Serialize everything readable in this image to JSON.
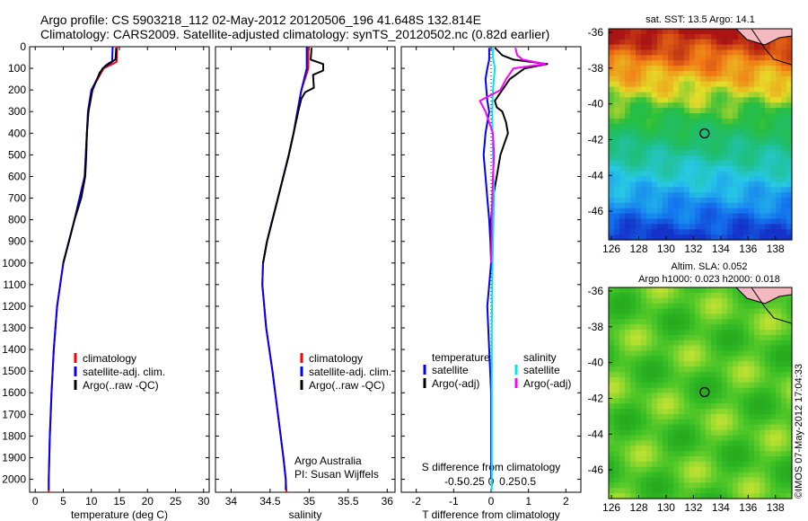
{
  "header": {
    "line1": "Argo profile: CS 5903218_112 02-May-2012 20120506_196 41.648S 132.814E",
    "line2": "Climatology: CARS2009. Satellite-adjusted climatology: synTS_20120502.nc (0.82d earlier)"
  },
  "depth_ticks": [
    0,
    100,
    200,
    300,
    400,
    500,
    600,
    700,
    800,
    900,
    1000,
    1100,
    1200,
    1300,
    1400,
    1500,
    1600,
    1700,
    1800,
    1900,
    2000
  ],
  "chart_data": [
    {
      "type": "line",
      "panel": "temperature",
      "xlabel": "temperature (deg C)",
      "xlim": [
        -1,
        31
      ],
      "x_ticks": [
        0,
        5,
        10,
        15,
        20,
        25,
        30
      ],
      "x_tick_labels": [
        "0",
        "5",
        "10",
        "15",
        "20",
        "25",
        "30"
      ],
      "ylim": [
        2060,
        0
      ],
      "legend": {
        "placement": "lower-center",
        "entries": [
          "climatology",
          "satellite-adj. clim.",
          "Argo(..raw -QC)"
        ]
      },
      "series": [
        {
          "name": "climatology",
          "color": "#ff0000",
          "depth": [
            0,
            70,
            100,
            200,
            300,
            400,
            600,
            800,
            1000,
            1200,
            1400,
            1600,
            1800,
            2000,
            2060
          ],
          "values": [
            14.6,
            14.5,
            12.2,
            10.0,
            9.4,
            9.2,
            8.8,
            7.0,
            5.0,
            3.9,
            3.3,
            2.9,
            2.6,
            2.4,
            2.4
          ]
        },
        {
          "name": "satellite-adj. clim.",
          "color": "#0000ff",
          "depth": [
            0,
            70,
            100,
            200,
            300,
            400,
            600,
            800,
            1000,
            1200,
            1400,
            1600,
            1800,
            2000,
            2050
          ],
          "values": [
            13.8,
            13.7,
            12.0,
            10.0,
            9.4,
            9.2,
            8.8,
            7.0,
            5.0,
            3.9,
            3.3,
            2.9,
            2.6,
            2.4,
            2.4
          ]
        },
        {
          "name": "Argo(..raw -QC)",
          "color": "#000000",
          "depth": [
            5,
            20,
            60,
            75,
            90,
            120,
            200,
            300,
            400,
            500,
            600,
            700,
            800,
            900,
            1000
          ],
          "values": [
            14.4,
            14.4,
            14.3,
            13.2,
            12.4,
            11.5,
            10.2,
            9.5,
            9.2,
            9.1,
            8.9,
            8.2,
            7.0,
            6.0,
            5.0
          ]
        }
      ]
    },
    {
      "type": "line",
      "panel": "salinity",
      "xlabel": "salinity",
      "xlim": [
        33.8,
        36.1
      ],
      "x_ticks": [
        34,
        34.5,
        35,
        35.5,
        36
      ],
      "x_tick_labels": [
        "34",
        "34.5",
        "35",
        "35.5",
        "36"
      ],
      "ylim": [
        2060,
        0
      ],
      "legend": {
        "placement": "lower-center",
        "entries": [
          "climatology",
          "satellite-adj. clim.",
          "Argo(..raw -QC)"
        ]
      },
      "series": [
        {
          "name": "climatology",
          "color": "#ff0000",
          "depth": [
            0,
            100,
            200,
            300,
            400,
            500,
            700,
            900,
            1000,
            1100,
            1300,
            1500,
            1700,
            1900,
            2000,
            2060
          ],
          "values": [
            34.99,
            34.99,
            34.9,
            34.85,
            34.8,
            34.74,
            34.6,
            34.46,
            34.41,
            34.4,
            34.45,
            34.53,
            34.6,
            34.67,
            34.7,
            34.71
          ]
        },
        {
          "name": "satellite-adj. clim.",
          "color": "#0000ff",
          "depth": [
            0,
            100,
            200,
            300,
            400,
            500,
            700,
            900,
            1000,
            1100,
            1300,
            1500,
            1700,
            1900,
            2000,
            2050
          ],
          "values": [
            34.97,
            34.97,
            34.9,
            34.85,
            34.8,
            34.74,
            34.6,
            34.46,
            34.41,
            34.4,
            34.45,
            34.53,
            34.6,
            34.67,
            34.7,
            34.7
          ]
        },
        {
          "name": "Argo(..raw -QC)",
          "color": "#000000",
          "depth": [
            5,
            60,
            80,
            110,
            130,
            190,
            210,
            240,
            300,
            400,
            500,
            600,
            700,
            800,
            900,
            1000
          ],
          "values": [
            35.03,
            35.02,
            35.18,
            35.18,
            35.05,
            35.06,
            34.95,
            34.9,
            34.86,
            34.8,
            34.74,
            34.67,
            34.6,
            34.53,
            34.46,
            34.41
          ]
        }
      ]
    },
    {
      "type": "line",
      "panel": "difference",
      "xlabel": "T difference from climatology",
      "xlabel_top": "S difference from climatology",
      "xlim": [
        -2.4,
        2.4
      ],
      "x_ticks": [
        -2,
        -1,
        0,
        1,
        2
      ],
      "x_tick_labels": [
        "-2",
        "-1",
        "0",
        "1",
        "2"
      ],
      "s_ticks": [
        -0.5,
        -0.25,
        0,
        0.25,
        0.5
      ],
      "s_tick_labels": [
        "-0.5",
        "-0.25",
        "0",
        "0.25",
        "0.5"
      ],
      "ylim": [
        2060,
        0
      ],
      "legend": {
        "placement": "lower-center",
        "temperature_heading": "temperature",
        "salinity_heading": "salinity",
        "entries": [
          "satellite",
          "Argo(-adj)",
          "satellite",
          "Argo(-adj)"
        ]
      },
      "series": [
        {
          "name": "satellite",
          "color": "#0000ff",
          "depth": [
            5,
            60,
            100,
            150,
            250,
            300,
            400,
            500,
            600,
            700,
            800,
            900,
            1000,
            1100,
            1200,
            1400,
            1600,
            1800,
            2000
          ],
          "values": [
            -0.05,
            -0.05,
            -0.1,
            -0.15,
            -0.1,
            -0.05,
            -0.15,
            -0.2,
            -0.15,
            -0.1,
            -0.05,
            -0.02,
            0,
            -0.05,
            -0.1,
            -0.05,
            0,
            0,
            0
          ]
        },
        {
          "name": "Argo(-adj)",
          "color": "#000000",
          "depth": [
            5,
            40,
            60,
            80,
            100,
            150,
            200,
            250,
            280,
            300,
            350,
            400,
            450,
            500,
            600,
            700,
            800,
            900,
            1000
          ],
          "values": [
            0.1,
            0.3,
            0.6,
            1.5,
            0.9,
            0.5,
            0.3,
            0.1,
            0.15,
            0.3,
            0.4,
            0.45,
            0.35,
            0.25,
            0.15,
            0.05,
            0,
            0,
            0
          ]
        },
        {
          "name": "satellite",
          "color": "#00e5ee",
          "depth": [
            5,
            50,
            100,
            200,
            300,
            500,
            700,
            900,
            1100,
            1300,
            1500,
            1700,
            1900,
            2050
          ],
          "values": [
            0.05,
            0.05,
            0.1,
            0.05,
            0.03,
            0.05,
            0.08,
            0.05,
            0.03,
            0.02,
            0.02,
            0.02,
            0.02,
            0.02
          ]
        },
        {
          "name": "Argo(-adj)",
          "color": "#ff00ff",
          "depth": [
            5,
            40,
            60,
            80,
            100,
            150,
            200,
            250,
            300,
            400,
            500,
            600,
            700,
            800,
            900,
            1000
          ],
          "values": [
            0.65,
            0.7,
            0.85,
            1.45,
            0.6,
            0.4,
            0.25,
            -0.3,
            -0.15,
            0.05,
            0.08,
            0.05,
            0.03,
            0.02,
            0.01,
            0
          ]
        }
      ]
    }
  ],
  "annotations": {
    "inst": "Argo Australia",
    "pi": "PI: Susan Wijffels"
  },
  "maps": [
    {
      "title": "sat. SST: 13.5  Argo: 14.1",
      "subtitle": "",
      "lon_ticks": [
        "126",
        "128",
        "130",
        "132",
        "134",
        "136",
        "138"
      ],
      "lat_ticks": [
        "-36",
        "-38",
        "-40",
        "-42",
        "-44",
        "-46"
      ],
      "lon_range": [
        125.8,
        139.2
      ],
      "lat_range": [
        -47.6,
        -35.8
      ],
      "argo_position": {
        "lon": 132.814,
        "lat": -41.648
      }
    },
    {
      "title": "Altim. SLA: 0.052",
      "subtitle": "Argo h1000: 0.023 h2000: 0.018",
      "lon_ticks": [
        "126",
        "128",
        "130",
        "132",
        "134",
        "136",
        "138"
      ],
      "lat_ticks": [
        "-36",
        "-38",
        "-40",
        "-42",
        "-44",
        "-46"
      ],
      "lon_range": [
        125.8,
        139.2
      ],
      "lat_range": [
        -47.6,
        -35.8
      ],
      "argo_position": {
        "lon": 132.814,
        "lat": -41.648
      }
    }
  ],
  "watermark": "©IMOS 07-May-2012 17:04:33",
  "colors": {
    "climatology": "#ff0000",
    "satellite": "#0000ff",
    "argo": "#000000",
    "sal_sat": "#00e5ee",
    "sal_argo": "#ff00ff",
    "land": "#f4b9c0"
  }
}
